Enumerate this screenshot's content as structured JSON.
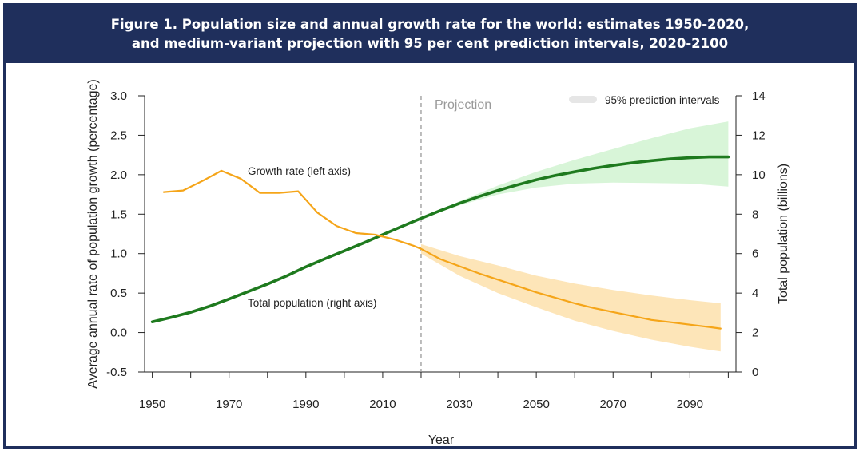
{
  "chart_data": {
    "type": "line",
    "title_line1": "Figure 1. Population size and annual growth rate for the world: estimates 1950-2020,",
    "title_line2": "and medium-variant projection with 95 per cent prediction intervals, 2020-2100",
    "xlabel": "Year",
    "ylabel_left": "Average annual rate of population growth (percentage)",
    "ylabel_right": "Total population (billions)",
    "xlim": [
      1948,
      2102
    ],
    "ylim_left": [
      -0.5,
      3.0
    ],
    "ylim_right": [
      0,
      14
    ],
    "x_ticks": [
      1950,
      1960,
      1970,
      1980,
      1990,
      2000,
      2010,
      2020,
      2030,
      2040,
      2050,
      2060,
      2070,
      2080,
      2090,
      2100
    ],
    "x_tick_labels": [
      "1950",
      "",
      "1970",
      "",
      "1990",
      "",
      "2010",
      "",
      "2030",
      "",
      "2050",
      "",
      "2070",
      "",
      "2090",
      ""
    ],
    "y_left_ticks": [
      "3.0",
      "2.5",
      "2.0",
      "1.5",
      "1.0",
      "0.5",
      "0.0",
      "-0.5"
    ],
    "y_right_ticks": [
      "14",
      "12",
      "10",
      "8",
      "6",
      "4",
      "2",
      "0"
    ],
    "projection_label": "Projection",
    "projection_start": 2020,
    "legend": {
      "label": "95% prediction intervals",
      "position": "top-right"
    },
    "annotations": {
      "growth": "Growth rate (left axis)",
      "population": "Total population (right axis)"
    },
    "colors": {
      "growth": "#f5a519",
      "growth_band": "#fde5b8",
      "population": "#1e7a1e",
      "population_band": "#d8f5d8",
      "legend_band": "#e6e6e6",
      "projection_line": "#999999"
    },
    "series": [
      {
        "key": "growth",
        "axis": "left",
        "x": [
          1953,
          1958,
          1963,
          1968,
          1973,
          1978,
          1983,
          1988,
          1993,
          1998,
          2003,
          2008,
          2013,
          2018,
          2020,
          2025,
          2030,
          2035,
          2040,
          2045,
          2050,
          2055,
          2060,
          2065,
          2070,
          2075,
          2080,
          2085,
          2090,
          2095,
          2098
        ],
        "values": [
          1.78,
          1.8,
          1.92,
          2.05,
          1.95,
          1.77,
          1.77,
          1.79,
          1.52,
          1.35,
          1.26,
          1.24,
          1.18,
          1.1,
          1.06,
          0.93,
          0.84,
          0.75,
          0.67,
          0.59,
          0.51,
          0.44,
          0.37,
          0.31,
          0.26,
          0.21,
          0.16,
          0.13,
          0.1,
          0.07,
          0.05
        ],
        "band_x": [
          2020,
          2030,
          2040,
          2050,
          2060,
          2070,
          2080,
          2090,
          2098
        ],
        "band_low": [
          1.0,
          0.72,
          0.5,
          0.32,
          0.15,
          0.02,
          -0.09,
          -0.18,
          -0.24
        ],
        "band_high": [
          1.12,
          0.97,
          0.85,
          0.72,
          0.62,
          0.54,
          0.47,
          0.41,
          0.37
        ]
      },
      {
        "key": "population",
        "axis": "right",
        "x": [
          1950,
          1955,
          1960,
          1965,
          1970,
          1975,
          1980,
          1985,
          1990,
          1995,
          2000,
          2005,
          2010,
          2015,
          2020,
          2025,
          2030,
          2035,
          2040,
          2045,
          2050,
          2055,
          2060,
          2065,
          2070,
          2075,
          2080,
          2085,
          2090,
          2095,
          2100
        ],
        "values": [
          2.54,
          2.77,
          3.03,
          3.34,
          3.7,
          4.08,
          4.46,
          4.87,
          5.33,
          5.74,
          6.14,
          6.54,
          6.96,
          7.38,
          7.79,
          8.18,
          8.55,
          8.89,
          9.2,
          9.48,
          9.74,
          9.96,
          10.15,
          10.32,
          10.47,
          10.6,
          10.71,
          10.8,
          10.86,
          10.9,
          10.9
        ],
        "band_x": [
          2020,
          2030,
          2040,
          2050,
          2060,
          2070,
          2080,
          2090,
          2100
        ],
        "band_low": [
          7.78,
          8.45,
          9.0,
          9.35,
          9.55,
          9.6,
          9.58,
          9.55,
          9.4
        ],
        "band_high": [
          7.8,
          8.65,
          9.45,
          10.15,
          10.75,
          11.3,
          11.85,
          12.35,
          12.7
        ]
      }
    ]
  }
}
